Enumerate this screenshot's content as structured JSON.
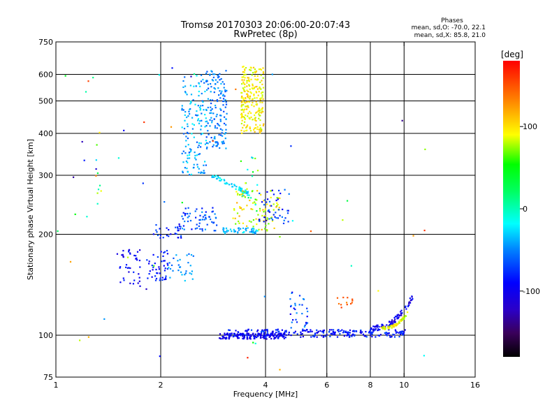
{
  "chart_data": {
    "type": "scatter",
    "title": "Tromsø 20170303 20:06:00-20:07:43",
    "subtitle": "RwPretec (8p)",
    "xlabel": "Frequency [MHz]",
    "ylabel": "Stationary phase Virtual Height [km]",
    "xscale": "log",
    "yscale": "log",
    "xlim": [
      1,
      16
    ],
    "ylim": [
      75,
      750
    ],
    "x_ticks": [
      1,
      2,
      4,
      6,
      8,
      10,
      16
    ],
    "y_ticks": [
      75,
      100,
      200,
      300,
      400,
      500,
      600,
      750
    ],
    "grid": true,
    "phase_legend": {
      "heading": "Phases",
      "line_o": "mean, sd,O: -70.0, 22.1",
      "line_x": "mean, sd,X:  85.8, 21.0"
    },
    "colorbar": {
      "title": "[deg]",
      "ticks": [
        100,
        0,
        -100
      ],
      "range": [
        -180,
        180
      ],
      "colormap": "rainbow"
    },
    "clusters": [
      {
        "x": [
          3.1,
          10.2
        ],
        "y": [
          98,
          108
        ],
        "n": 260,
        "phase": [
          -115,
          -80
        ],
        "shape": "band"
      },
      {
        "x": [
          2.9,
          4.6
        ],
        "y": [
          97,
          104
        ],
        "n": 140,
        "phase": [
          -120,
          -95
        ],
        "shape": "band"
      },
      {
        "x": [
          8.0,
          10.6
        ],
        "y": [
          103,
          132
        ],
        "n": 90,
        "phase": [
          -130,
          -90
        ],
        "shape": "curve_up"
      },
      {
        "x": [
          8.6,
          10.3
        ],
        "y": [
          104,
          118
        ],
        "n": 60,
        "phase": [
          60,
          110
        ],
        "shape": "curve_up"
      },
      {
        "x": [
          4.7,
          5.3
        ],
        "y": [
          105,
          135
        ],
        "n": 30,
        "phase": [
          -110,
          -60
        ],
        "shape": "blob"
      },
      {
        "x": [
          6.4,
          7.2
        ],
        "y": [
          120,
          130
        ],
        "n": 12,
        "phase": [
          130,
          160
        ],
        "shape": "blob"
      },
      {
        "x": [
          1.5,
          1.75
        ],
        "y": [
          140,
          180
        ],
        "n": 40,
        "phase": [
          -120,
          -90
        ],
        "shape": "blob"
      },
      {
        "x": [
          1.8,
          2.1
        ],
        "y": [
          145,
          180
        ],
        "n": 45,
        "phase": [
          -110,
          -85
        ],
        "shape": "blob"
      },
      {
        "x": [
          2.1,
          2.5
        ],
        "y": [
          145,
          175
        ],
        "n": 30,
        "phase": [
          -80,
          -50
        ],
        "shape": "blob"
      },
      {
        "x": [
          1.9,
          2.3
        ],
        "y": [
          195,
          215
        ],
        "n": 30,
        "phase": [
          -110,
          -80
        ],
        "shape": "blob"
      },
      {
        "x": [
          2.3,
          2.9
        ],
        "y": [
          205,
          240
        ],
        "n": 60,
        "phase": [
          -100,
          -60
        ],
        "shape": "blob"
      },
      {
        "x": [
          2.8,
          3.6
        ],
        "y": [
          260,
          300
        ],
        "n": 60,
        "phase": [
          -60,
          -30
        ],
        "shape": "arc"
      },
      {
        "x": [
          3.0,
          3.8
        ],
        "y": [
          200,
          215
        ],
        "n": 50,
        "phase": [
          -70,
          -40
        ],
        "shape": "band"
      },
      {
        "x": [
          3.2,
          4.4
        ],
        "y": [
          205,
          270
        ],
        "n": 90,
        "phase": [
          50,
          120
        ],
        "shape": "blob"
      },
      {
        "x": [
          3.8,
          4.7
        ],
        "y": [
          215,
          275
        ],
        "n": 45,
        "phase": [
          -110,
          -70
        ],
        "shape": "blob"
      },
      {
        "x": [
          2.3,
          2.7
        ],
        "y": [
          300,
          600
        ],
        "n": 140,
        "phase": [
          -80,
          -40
        ],
        "shape": "blob"
      },
      {
        "x": [
          2.7,
          3.1
        ],
        "y": [
          360,
          620
        ],
        "n": 150,
        "phase": [
          -85,
          -55
        ],
        "shape": "blob"
      },
      {
        "x": [
          3.4,
          3.95
        ],
        "y": [
          400,
          640
        ],
        "n": 230,
        "phase": [
          70,
          115
        ],
        "shape": "blob"
      },
      {
        "x": [
          3.4,
          3.8
        ],
        "y": [
          230,
          340
        ],
        "n": 20,
        "phase": [
          -60,
          90
        ],
        "shape": "blob"
      },
      {
        "x": [
          1.3,
          1.35
        ],
        "y": [
          220,
          430
        ],
        "n": 10,
        "phase": [
          -120,
          150
        ],
        "shape": "blob"
      },
      {
        "x": [
          1.0,
          12.0
        ],
        "y": [
          78,
          650
        ],
        "n": 55,
        "phase": [
          -140,
          170
        ],
        "shape": "scatter"
      }
    ]
  }
}
